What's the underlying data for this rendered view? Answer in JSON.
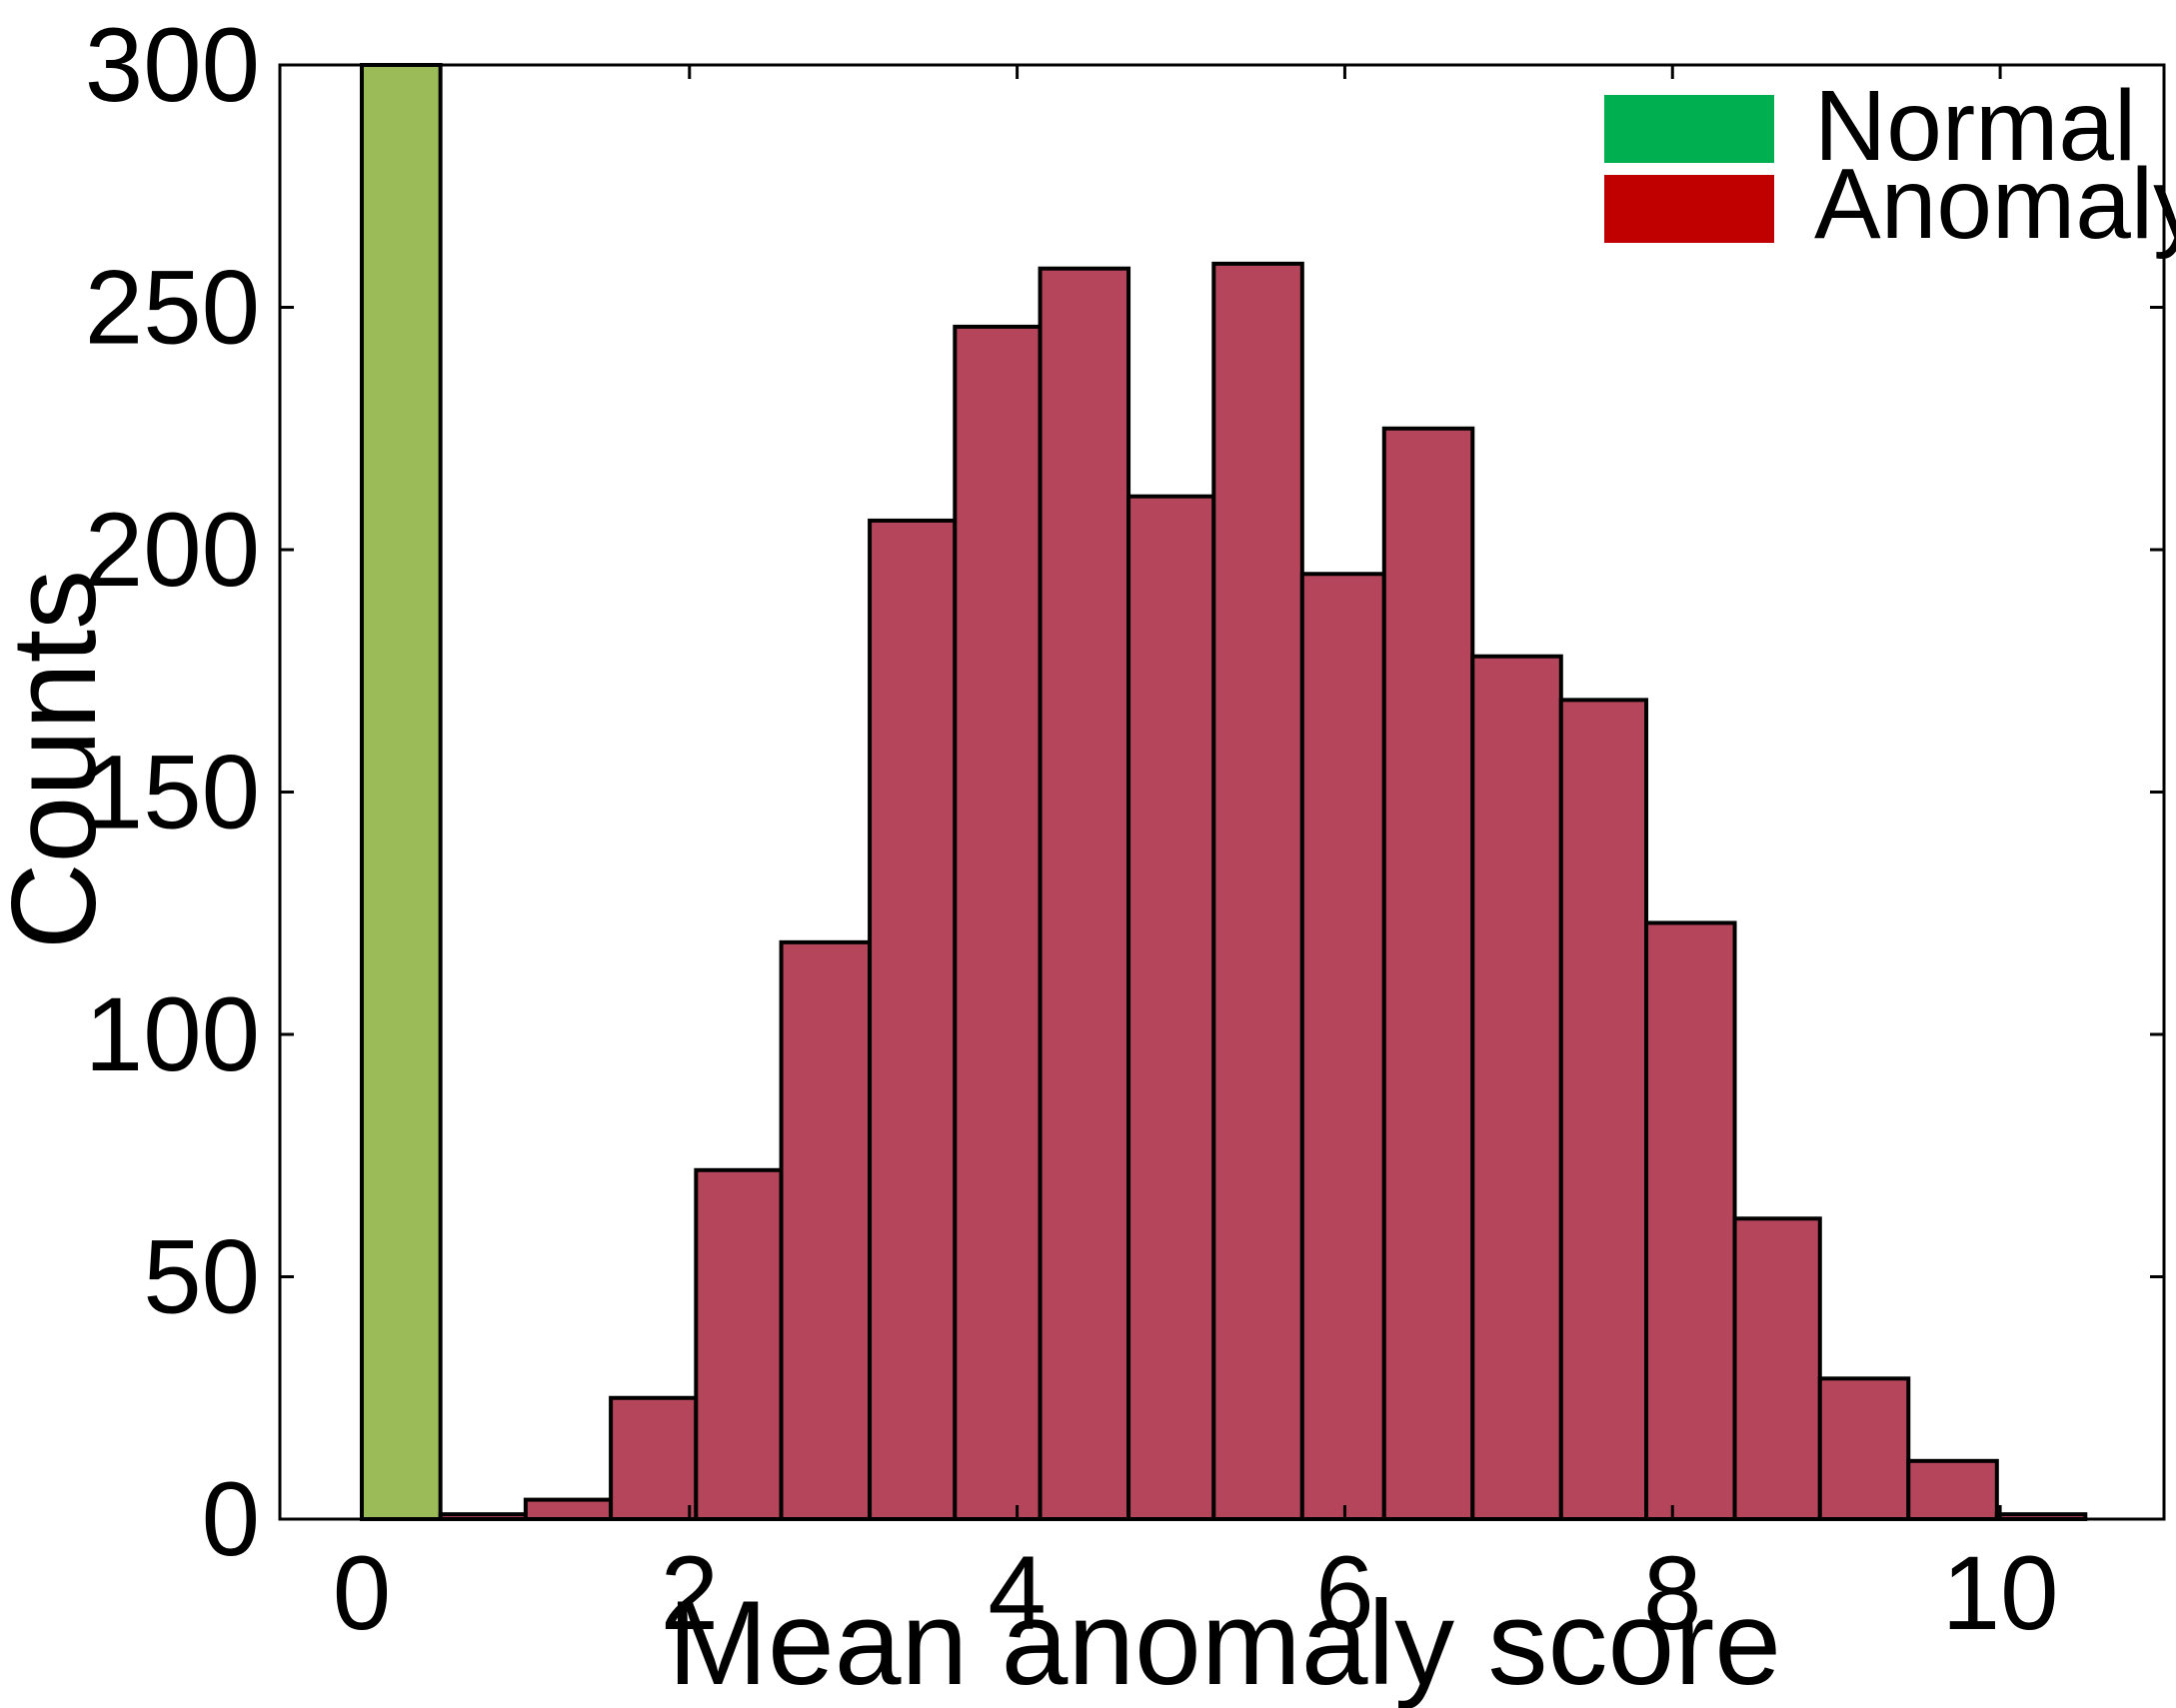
{
  "chart_data": {
    "type": "bar",
    "xlabel": "Mean anomaly score",
    "ylabel": "Counts",
    "xlim": [
      -0.5,
      11
    ],
    "ylim": [
      0,
      300
    ],
    "xticks": [
      "0",
      "2",
      "4",
      "6",
      "8",
      "10"
    ],
    "yticks": [
      "0",
      "50",
      "100",
      "150",
      "200",
      "250",
      "300"
    ],
    "legend": {
      "position": "top-right"
    },
    "series": [
      {
        "name": "Normal",
        "color": "#9bbb59",
        "legend_color": "#00b050",
        "bins": [
          {
            "x0": 0.0,
            "x1": 0.48,
            "count": 300
          }
        ]
      },
      {
        "name": "Anomaly",
        "color": "#b5455a",
        "legend_color": "#c00000",
        "bins": [
          {
            "x0": 0.48,
            "x1": 1.0,
            "count": 1
          },
          {
            "x0": 1.0,
            "x1": 1.52,
            "count": 4
          },
          {
            "x0": 1.52,
            "x1": 2.04,
            "count": 25
          },
          {
            "x0": 2.04,
            "x1": 2.56,
            "count": 72
          },
          {
            "x0": 2.56,
            "x1": 3.1,
            "count": 119
          },
          {
            "x0": 3.1,
            "x1": 3.62,
            "count": 206
          },
          {
            "x0": 3.62,
            "x1": 4.14,
            "count": 246
          },
          {
            "x0": 4.14,
            "x1": 4.68,
            "count": 258
          },
          {
            "x0": 4.68,
            "x1": 5.2,
            "count": 211
          },
          {
            "x0": 5.2,
            "x1": 5.74,
            "count": 259
          },
          {
            "x0": 5.74,
            "x1": 6.24,
            "count": 195
          },
          {
            "x0": 6.24,
            "x1": 6.78,
            "count": 225
          },
          {
            "x0": 6.78,
            "x1": 7.32,
            "count": 178
          },
          {
            "x0": 7.32,
            "x1": 7.84,
            "count": 169
          },
          {
            "x0": 7.84,
            "x1": 8.38,
            "count": 123
          },
          {
            "x0": 8.38,
            "x1": 8.9,
            "count": 62
          },
          {
            "x0": 8.9,
            "x1": 9.44,
            "count": 29
          },
          {
            "x0": 9.44,
            "x1": 9.98,
            "count": 12
          },
          {
            "x0": 9.98,
            "x1": 10.52,
            "count": 1
          }
        ]
      }
    ]
  }
}
